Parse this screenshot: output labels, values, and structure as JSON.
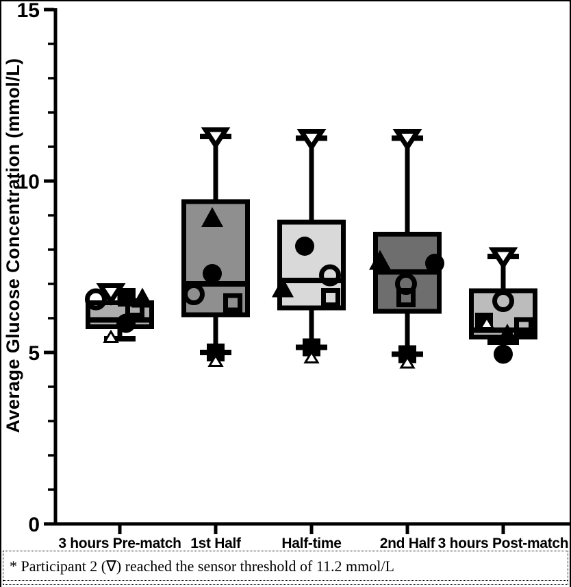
{
  "footnote": {
    "text": "* Participant 2 (∇) reached the sensor threshold of 11.2 mmol/L"
  },
  "chart_data": {
    "type": "box",
    "title": "",
    "xlabel": "",
    "ylabel": "Average Glucose Concentration (mmol/L)",
    "ylim": [
      0,
      15
    ],
    "ytick_values": [
      0,
      5,
      10,
      15
    ],
    "ytick_minor_step": 1,
    "grid": false,
    "legend": "none",
    "axis_color": "#000000",
    "categories": [
      "3 hours Pre-match",
      "1st Half",
      "Half-time",
      "2nd Half",
      "3 hours Post-match"
    ],
    "boxes": [
      {
        "category": "3 hours Pre-match",
        "fill": "#adadad",
        "whisker_low": 5.4,
        "q1": 5.75,
        "median": 5.95,
        "q3": 6.45,
        "whisker_high": 6.8
      },
      {
        "category": "1st Half",
        "fill": "#8f8f8f",
        "whisker_low": 5.0,
        "q1": 6.1,
        "median": 7.0,
        "q3": 9.4,
        "whisker_high": 11.3
      },
      {
        "category": "Half-time",
        "fill": "#d9d9d9",
        "whisker_low": 5.15,
        "q1": 6.3,
        "median": 7.1,
        "q3": 8.8,
        "whisker_high": 11.25
      },
      {
        "category": "2nd Half",
        "fill": "#6e6e6e",
        "whisker_low": 4.95,
        "q1": 6.2,
        "median": 7.35,
        "q3": 8.45,
        "whisker_high": 11.25
      },
      {
        "category": "3 hours Post-match",
        "fill": "#bcbcbc",
        "whisker_low": 5.3,
        "q1": 5.45,
        "median": 5.65,
        "q3": 6.8,
        "whisker_high": 7.8
      }
    ],
    "points": [
      {
        "category_index": 0,
        "marker": "open-inverted-triangle",
        "value": 6.75,
        "dx": -13
      },
      {
        "category_index": 0,
        "marker": "open-circle",
        "value": 6.55,
        "dx": -35
      },
      {
        "category_index": 0,
        "marker": "filled-square",
        "value": 6.6,
        "dx": 10
      },
      {
        "category_index": 0,
        "marker": "filled-triangle",
        "value": 6.55,
        "dx": 33
      },
      {
        "category_index": 0,
        "marker": "open-square",
        "value": 6.3,
        "dx": 22
      },
      {
        "category_index": 0,
        "marker": "filled-circle",
        "value": 5.85,
        "dx": 9
      },
      {
        "category_index": 0,
        "marker": "small-open-triangle",
        "value": 5.45,
        "dx": -13
      },
      {
        "category_index": 1,
        "marker": "open-inverted-triangle",
        "value": 11.3,
        "dx": 0
      },
      {
        "category_index": 1,
        "marker": "filled-triangle",
        "value": 8.9,
        "dx": -5
      },
      {
        "category_index": 1,
        "marker": "filled-circle",
        "value": 7.3,
        "dx": -5
      },
      {
        "category_index": 1,
        "marker": "open-circle",
        "value": 6.7,
        "dx": -32
      },
      {
        "category_index": 1,
        "marker": "open-square",
        "value": 6.45,
        "dx": 25
      },
      {
        "category_index": 1,
        "marker": "filled-square",
        "value": 5.0,
        "dx": 0
      },
      {
        "category_index": 1,
        "marker": "small-open-triangle",
        "value": 4.75,
        "dx": 0
      },
      {
        "category_index": 2,
        "marker": "open-inverted-triangle",
        "value": 11.25,
        "dx": 0
      },
      {
        "category_index": 2,
        "marker": "filled-circle",
        "value": 8.1,
        "dx": -10
      },
      {
        "category_index": 2,
        "marker": "open-circle",
        "value": 7.25,
        "dx": 27
      },
      {
        "category_index": 2,
        "marker": "filled-triangle",
        "value": 6.85,
        "dx": -42
      },
      {
        "category_index": 2,
        "marker": "open-square",
        "value": 6.6,
        "dx": 28
      },
      {
        "category_index": 2,
        "marker": "filled-square",
        "value": 5.15,
        "dx": 0
      },
      {
        "category_index": 2,
        "marker": "small-open-triangle",
        "value": 4.85,
        "dx": 0
      },
      {
        "category_index": 3,
        "marker": "open-inverted-triangle",
        "value": 11.25,
        "dx": 0
      },
      {
        "category_index": 3,
        "marker": "filled-triangle",
        "value": 7.65,
        "dx": -40
      },
      {
        "category_index": 3,
        "marker": "filled-circle",
        "value": 7.6,
        "dx": 40
      },
      {
        "category_index": 3,
        "marker": "open-circle",
        "value": 7.0,
        "dx": -2
      },
      {
        "category_index": 3,
        "marker": "open-square",
        "value": 6.6,
        "dx": -2
      },
      {
        "category_index": 3,
        "marker": "filled-square",
        "value": 4.95,
        "dx": 0
      },
      {
        "category_index": 3,
        "marker": "small-open-triangle",
        "value": 4.7,
        "dx": 0
      },
      {
        "category_index": 4,
        "marker": "open-inverted-triangle",
        "value": 7.8,
        "dx": 0
      },
      {
        "category_index": 4,
        "marker": "open-circle",
        "value": 6.5,
        "dx": 0
      },
      {
        "category_index": 4,
        "marker": "filled-square",
        "value": 5.9,
        "dx": -28
      },
      {
        "category_index": 4,
        "marker": "small-open-triangle",
        "value": 5.85,
        "dx": -24
      },
      {
        "category_index": 4,
        "marker": "open-square",
        "value": 5.75,
        "dx": 30
      },
      {
        "category_index": 4,
        "marker": "filled-triangle",
        "value": 5.5,
        "dx": 6
      },
      {
        "category_index": 4,
        "marker": "filled-circle",
        "value": 4.95,
        "dx": 0
      }
    ]
  }
}
